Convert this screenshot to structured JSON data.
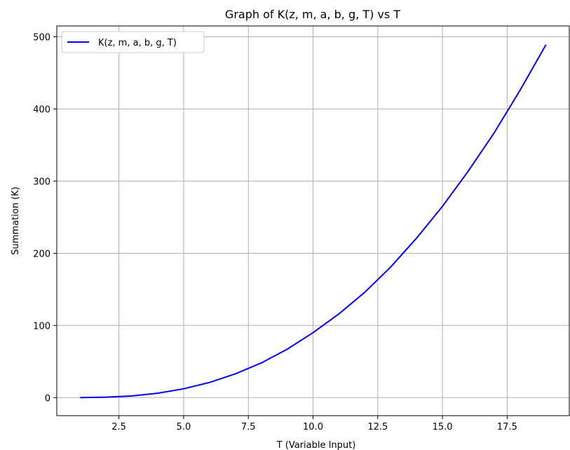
{
  "chart_data": {
    "type": "line",
    "title": "Graph of K(z, m, a, b, g, T) vs T",
    "xlabel": "T (Variable Input)",
    "ylabel": "Summation (K)",
    "xlim": [
      0.1,
      19.9
    ],
    "ylim": [
      -25,
      515
    ],
    "xticks": [
      2.5,
      5.0,
      7.5,
      10.0,
      12.5,
      15.0,
      17.5
    ],
    "xtick_labels": [
      "2.5",
      "5.0",
      "7.5",
      "10.0",
      "12.5",
      "15.0",
      "17.5"
    ],
    "yticks": [
      0,
      100,
      200,
      300,
      400,
      500
    ],
    "ytick_labels": [
      "0",
      "100",
      "200",
      "300",
      "400",
      "500"
    ],
    "grid": true,
    "legend_position": "top-left",
    "series": [
      {
        "name": "K(z, m, a, b, g, T)",
        "color": "#0000ff",
        "x": [
          1,
          2,
          3,
          4,
          5,
          6,
          7,
          8,
          9,
          10,
          11,
          12,
          13,
          14,
          15,
          16,
          17,
          18,
          19
        ],
        "y": [
          0.0,
          0.6,
          2.3,
          6.1,
          12.2,
          21.0,
          33.0,
          48.0,
          67.0,
          90.0,
          116.0,
          146.0,
          181.0,
          221.0,
          265.0,
          314.0,
          367.0,
          426.0,
          489.0
        ]
      }
    ]
  }
}
